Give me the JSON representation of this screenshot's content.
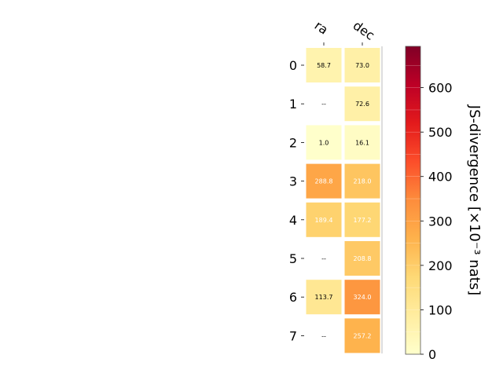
{
  "chart_data": {
    "type": "heatmap",
    "title": "",
    "columns": [
      "ra",
      "dec"
    ],
    "rows": [
      "0",
      "1",
      "2",
      "3",
      "4",
      "5",
      "6",
      "7"
    ],
    "values": [
      [
        58.7,
        73.0
      ],
      [
        null,
        72.6
      ],
      [
        1.0,
        16.1
      ],
      [
        288.8,
        218.0
      ],
      [
        189.4,
        177.2
      ],
      [
        null,
        208.8
      ],
      [
        113.7,
        324.0
      ],
      [
        null,
        257.2
      ]
    ],
    "missing_label": "--",
    "value_format": "one decimal",
    "colormap": "YlOrRd",
    "colorbar": {
      "label": "JS-divergence [×10⁻³ nats]",
      "vmin": 0,
      "vmax": 693,
      "ticks": [
        0,
        100,
        200,
        300,
        400,
        500,
        600
      ]
    },
    "colors": {
      "cmap_stops": [
        "#ffffcc",
        "#ffeda0",
        "#fed976",
        "#feb24c",
        "#fd8d3c",
        "#fc4e2a",
        "#e31a1c",
        "#bd0026",
        "#800026"
      ],
      "light_text": "#ffffff",
      "dark_text": "#000000"
    }
  }
}
